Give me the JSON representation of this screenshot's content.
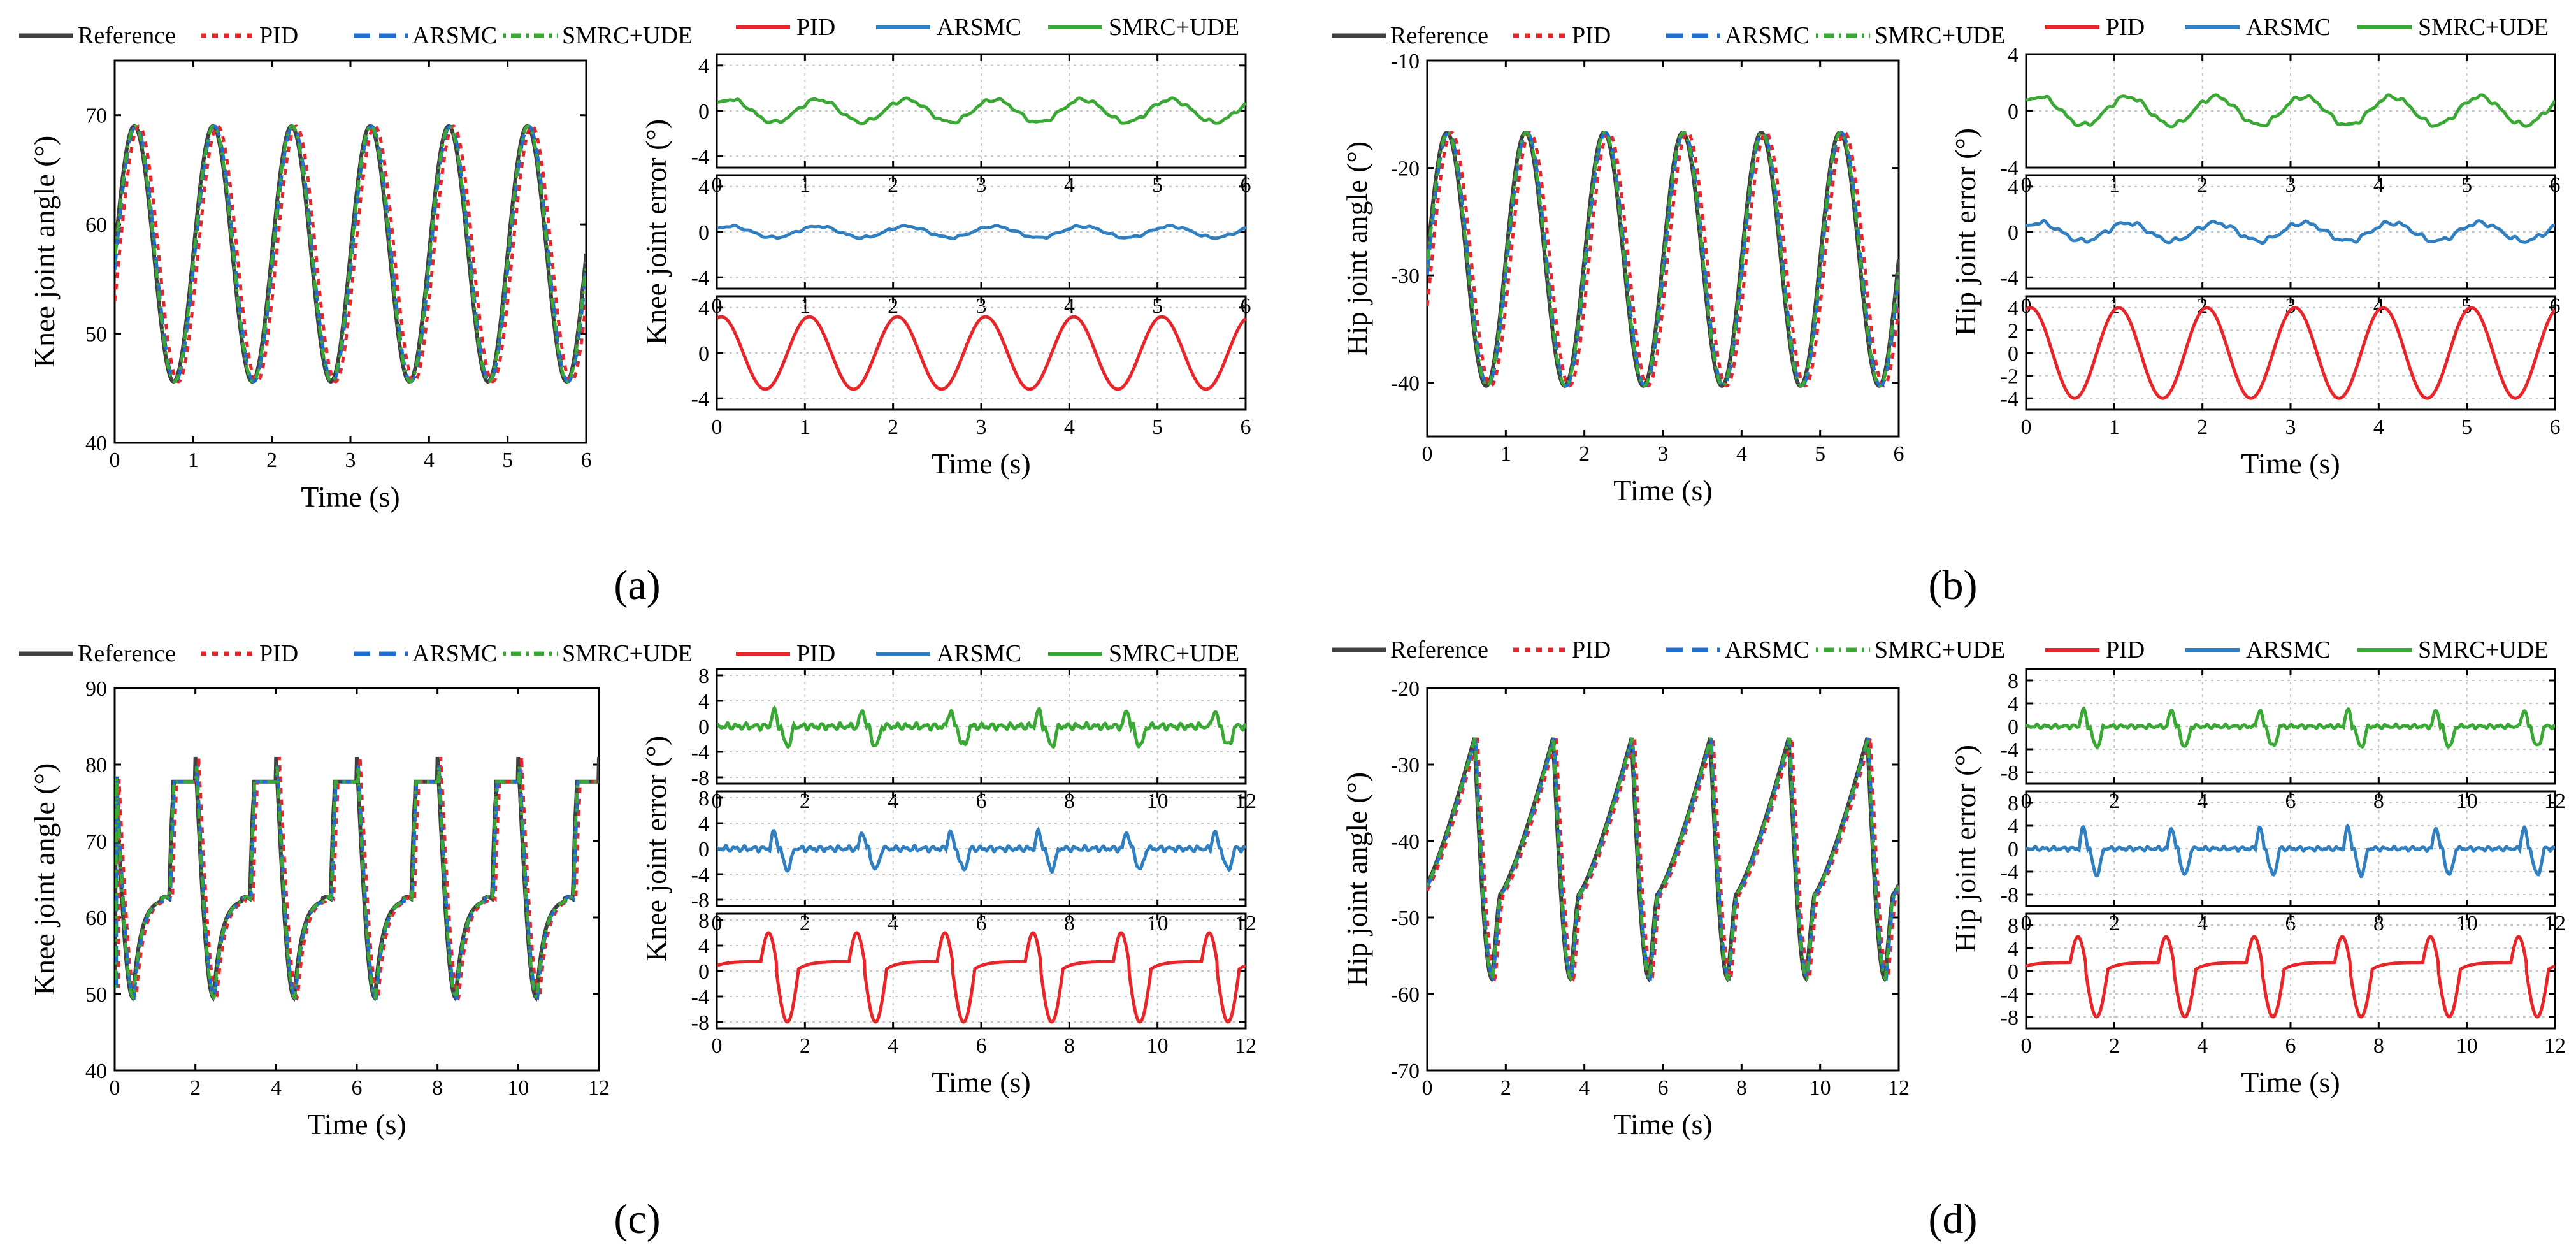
{
  "colors": {
    "reference": "#404040",
    "pid": "#e8262a",
    "arsmc": "#2f7fc1",
    "arsmc_dash": "#1f6ed4",
    "smrc": "#3aa834"
  },
  "legend": {
    "reference": "Reference",
    "pid": "PID",
    "arsmc": "ARSMC",
    "smrc": "SMRC+UDE"
  },
  "panels": {
    "a": {
      "caption": "(a)"
    },
    "b": {
      "caption": "(b)"
    },
    "c": {
      "caption": "(c)"
    },
    "d": {
      "caption": "(d)"
    }
  },
  "chart_data": [
    {
      "id": "a-angle",
      "type": "line",
      "title": "",
      "xlabel": "Time (s)",
      "ylabel": "Knee joint angle (°)",
      "xlim": [
        0,
        6
      ],
      "ylim": [
        40,
        75
      ],
      "xticks": [
        0,
        1,
        2,
        3,
        4,
        5,
        6
      ],
      "yticks": [
        40,
        50,
        60,
        70
      ],
      "pattern": "sine",
      "period": 1.0,
      "center": 57.3,
      "amplitude": 11.7,
      "peak_time": 0.25,
      "series": [
        {
          "name": "Reference",
          "lag": 0.0
        },
        {
          "name": "PID",
          "lag": 0.06
        },
        {
          "name": "ARSMC",
          "lag": 0.02
        },
        {
          "name": "SMRC+UDE",
          "lag": 0.01
        }
      ]
    },
    {
      "id": "a-error",
      "type": "line",
      "xlabel": "Time (s)",
      "ylabel": "Knee joint error (°)",
      "xlim": [
        0,
        6
      ],
      "xticks": [
        0,
        1,
        2,
        3,
        4,
        5,
        6
      ],
      "subplots": [
        {
          "name": "SMRC+UDE",
          "ylim": [
            -5,
            5
          ],
          "yticks": [
            -4,
            0,
            4
          ],
          "amplitude": 1.0,
          "noise": 0.2
        },
        {
          "name": "ARSMC",
          "ylim": [
            -5,
            5
          ],
          "yticks": [
            -4,
            0,
            4
          ],
          "amplitude": 0.5,
          "noise": 0.12
        },
        {
          "name": "PID",
          "ylim": [
            -5,
            5
          ],
          "yticks": [
            -4,
            0,
            4
          ],
          "amplitude": 3.2,
          "noise": 0.0
        }
      ]
    },
    {
      "id": "b-angle",
      "type": "line",
      "title": "",
      "xlabel": "Time (s)",
      "ylabel": "Hip joint angle (°)",
      "xlim": [
        0,
        6
      ],
      "ylim": [
        -45,
        -10
      ],
      "xticks": [
        0,
        1,
        2,
        3,
        4,
        5,
        6
      ],
      "yticks": [
        -40,
        -30,
        -20,
        -10
      ],
      "pattern": "sine",
      "period": 1.0,
      "center": -28.5,
      "amplitude": 11.8,
      "peak_time": 0.25,
      "series": [
        {
          "name": "Reference",
          "lag": 0.0
        },
        {
          "name": "PID",
          "lag": 0.06
        },
        {
          "name": "ARSMC",
          "lag": 0.02
        },
        {
          "name": "SMRC+UDE",
          "lag": 0.01
        }
      ]
    },
    {
      "id": "b-error",
      "type": "line",
      "xlabel": "Time (s)",
      "ylabel": "Hip joint error (°)",
      "xlim": [
        0,
        6
      ],
      "xticks": [
        0,
        1,
        2,
        3,
        4,
        5,
        6
      ],
      "subplots": [
        {
          "name": "SMRC+UDE",
          "ylim": [
            -4,
            4
          ],
          "yticks": [
            -4,
            0,
            4
          ],
          "amplitude": 1.0,
          "noise": 0.2
        },
        {
          "name": "ARSMC",
          "ylim": [
            -5,
            5
          ],
          "yticks": [
            -4,
            0,
            4
          ],
          "amplitude": 0.8,
          "noise": 0.25
        },
        {
          "name": "PID",
          "ylim": [
            -5,
            5
          ],
          "yticks": [
            -4,
            -2,
            0,
            2,
            4
          ],
          "amplitude": 4.0,
          "noise": 0.0
        }
      ]
    },
    {
      "id": "c-angle",
      "type": "line",
      "title": "",
      "xlabel": "Time (s)",
      "ylabel": "Knee joint angle (°)",
      "xlim": [
        0,
        12
      ],
      "ylim": [
        40,
        90
      ],
      "xticks": [
        0,
        2,
        4,
        6,
        8,
        10,
        12
      ],
      "yticks": [
        40,
        50,
        60,
        70,
        80,
        90
      ],
      "pattern": "gait-knee",
      "period": 2.0,
      "peak_value": 81,
      "trough_value": 49.5,
      "plateau_value": 62.5,
      "series": [
        {
          "name": "Reference",
          "lag": 0.0
        },
        {
          "name": "PID",
          "lag": 0.08
        },
        {
          "name": "ARSMC",
          "lag": 0.03
        },
        {
          "name": "SMRC+UDE",
          "lag": 0.015
        }
      ]
    },
    {
      "id": "c-error",
      "type": "line",
      "xlabel": "Time (s)",
      "ylabel": "Knee joint error (°)",
      "xlim": [
        0,
        12
      ],
      "xticks": [
        0,
        2,
        4,
        6,
        8,
        10,
        12
      ],
      "subplots": [
        {
          "name": "SMRC+UDE",
          "ylim": [
            -9,
            9
          ],
          "yticks": [
            -8,
            -4,
            0,
            4,
            8
          ],
          "amplitude": 3.0,
          "noise": 0.6
        },
        {
          "name": "ARSMC",
          "ylim": [
            -9,
            9
          ],
          "yticks": [
            -8,
            -4,
            0,
            4,
            8
          ],
          "amplitude": 3.2,
          "noise": 0.5
        },
        {
          "name": "PID",
          "ylim": [
            -9,
            9
          ],
          "yticks": [
            -8,
            -4,
            0,
            4,
            8
          ],
          "amplitude": 8.0,
          "noise": 0.0
        }
      ]
    },
    {
      "id": "d-angle",
      "type": "line",
      "title": "",
      "xlabel": "Time (s)",
      "ylabel": "Hip joint angle (°)",
      "xlim": [
        0,
        12
      ],
      "ylim": [
        -70,
        -20
      ],
      "xticks": [
        0,
        2,
        4,
        6,
        8,
        10,
        12
      ],
      "yticks": [
        -70,
        -60,
        -50,
        -40,
        -30,
        -20
      ],
      "pattern": "gait-hip",
      "period": 2.0,
      "peak_value": -26.5,
      "trough_value": -58,
      "start_value": -47,
      "series": [
        {
          "name": "Reference",
          "lag": 0.0
        },
        {
          "name": "PID",
          "lag": 0.08
        },
        {
          "name": "ARSMC",
          "lag": 0.03
        },
        {
          "name": "SMRC+UDE",
          "lag": 0.015
        }
      ]
    },
    {
      "id": "d-error",
      "type": "line",
      "xlabel": "Time (s)",
      "ylabel": "Hip joint error (°)",
      "xlim": [
        0,
        12
      ],
      "xticks": [
        0,
        2,
        4,
        6,
        8,
        10,
        12
      ],
      "subplots": [
        {
          "name": "SMRC+UDE",
          "ylim": [
            -10,
            10
          ],
          "yticks": [
            -8,
            -4,
            0,
            4,
            8
          ],
          "amplitude": 3.5,
          "noise": 0.4
        },
        {
          "name": "ARSMC",
          "ylim": [
            -10,
            10
          ],
          "yticks": [
            -8,
            -4,
            0,
            4,
            8
          ],
          "amplitude": 4.5,
          "noise": 0.4
        },
        {
          "name": "PID",
          "ylim": [
            -10,
            10
          ],
          "yticks": [
            -8,
            -4,
            0,
            4,
            8
          ],
          "amplitude": 8.0,
          "noise": 0.0
        }
      ]
    }
  ]
}
